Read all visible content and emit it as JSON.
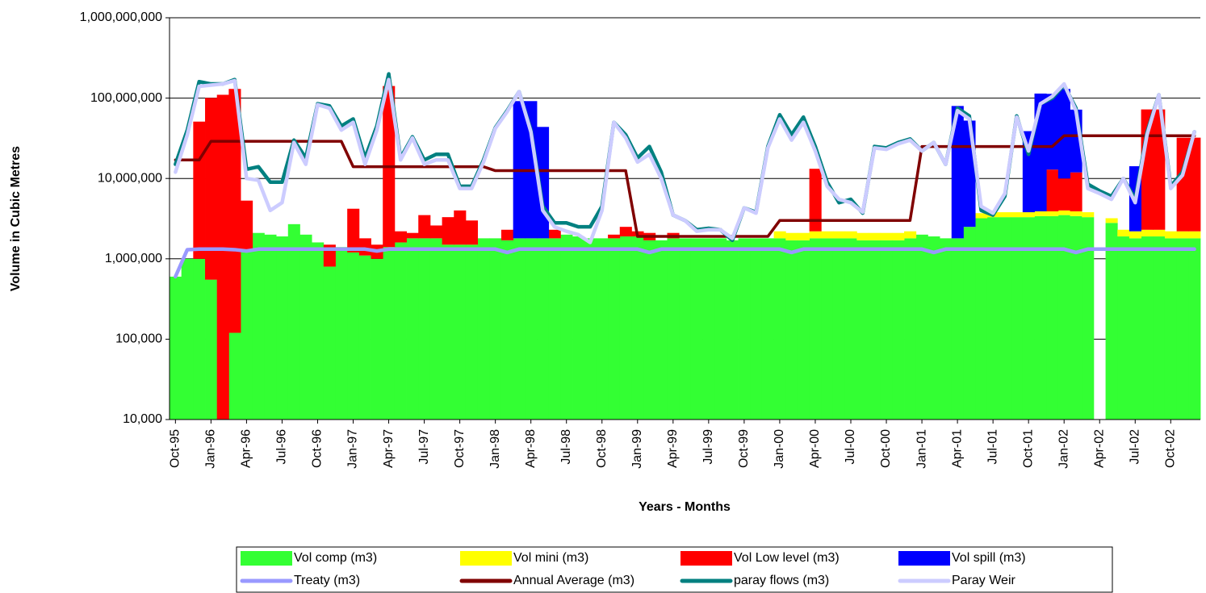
{
  "chart_data": {
    "type": "area",
    "stacked": true,
    "log_scale": true,
    "grid": true,
    "legend": "bottom",
    "y_label": "Volume in Cubic Metres",
    "x_label": "Years - Months",
    "ylim": [
      10000,
      1000000000
    ],
    "yticks": [
      {
        "value": 10000,
        "label": "10,000"
      },
      {
        "value": 100000,
        "label": "100,000"
      },
      {
        "value": 1000000,
        "label": "1,000,000"
      },
      {
        "value": 10000000,
        "label": "10,000,000"
      },
      {
        "value": 100000000,
        "label": "100,000,000"
      },
      {
        "value": 1000000000,
        "label": "1,000,000,000"
      }
    ],
    "categories": [
      "Oct-95",
      null,
      null,
      "Jan-96",
      null,
      null,
      "Apr-96",
      null,
      null,
      "Jul-96",
      null,
      null,
      "Oct-96",
      null,
      null,
      "Jan-97",
      null,
      null,
      "Apr-97",
      null,
      null,
      "Jul-97",
      null,
      null,
      "Oct-97",
      null,
      null,
      "Jan-98",
      null,
      null,
      "Apr-98",
      null,
      null,
      "Jul-98",
      null,
      null,
      "Oct-98",
      null,
      null,
      "Jan-99",
      null,
      null,
      "Apr-99",
      null,
      null,
      "Jul-99",
      null,
      null,
      "Oct-99",
      null,
      null,
      "Jan-00",
      null,
      null,
      "Apr-00",
      null,
      null,
      "Jul-00",
      null,
      null,
      "Oct-00",
      null,
      null,
      "Jan-01",
      null,
      null,
      "Apr-01",
      null,
      null,
      "Jul-01",
      null,
      null,
      "Oct-01",
      null,
      null,
      "Jan-02",
      null,
      null,
      "Apr-02",
      null,
      null,
      "Jul-02",
      null,
      null,
      "Oct-02",
      null,
      null
    ],
    "series": [
      {
        "name": "Vol comp (m3)",
        "type": "area",
        "color": "#33ff33",
        "values": [
          600000,
          1000000,
          1000000,
          550000,
          0,
          120000,
          1300000,
          2100000,
          2000000,
          1900000,
          2700000,
          2000000,
          1600000,
          800000,
          1400000,
          1200000,
          1100000,
          1000000,
          1400000,
          1600000,
          1800000,
          1800000,
          1800000,
          1500000,
          1500000,
          1500000,
          1800000,
          1800000,
          1700000,
          1800000,
          1800000,
          1800000,
          1800000,
          2000000,
          1900000,
          1800000,
          1800000,
          1800000,
          1900000,
          1900000,
          1700000,
          1700000,
          1800000,
          1800000,
          1800000,
          1800000,
          1800000,
          1700000,
          1800000,
          1800000,
          1800000,
          1800000,
          1700000,
          1700000,
          1800000,
          1800000,
          1800000,
          1800000,
          1700000,
          1700000,
          1700000,
          1700000,
          1800000,
          2000000,
          1900000,
          1800000,
          1800000,
          2500000,
          3200000,
          3300000,
          3300000,
          3300000,
          3300000,
          3400000,
          3400000,
          3500000,
          3400000,
          3300000,
          0,
          2800000,
          1900000,
          1800000,
          1900000,
          1900000,
          1800000,
          1800000,
          1800000
        ]
      },
      {
        "name": "Vol mini (m3)",
        "type": "area",
        "color": "#ffff00",
        "values": [
          0,
          0,
          0,
          0,
          0,
          0,
          0,
          0,
          0,
          0,
          0,
          0,
          0,
          0,
          0,
          0,
          0,
          0,
          0,
          0,
          0,
          0,
          0,
          0,
          0,
          0,
          0,
          0,
          0,
          0,
          0,
          0,
          0,
          0,
          0,
          0,
          0,
          0,
          0,
          0,
          0,
          0,
          0,
          0,
          0,
          0,
          0,
          0,
          0,
          0,
          0,
          400000,
          400000,
          400000,
          400000,
          400000,
          400000,
          400000,
          400000,
          400000,
          400000,
          400000,
          400000,
          0,
          0,
          0,
          0,
          0,
          500000,
          500000,
          500000,
          500000,
          500000,
          500000,
          500000,
          500000,
          500000,
          500000,
          0,
          400000,
          400000,
          400000,
          400000,
          400000,
          400000,
          400000,
          400000
        ]
      },
      {
        "name": "Vol Low level (m3)",
        "type": "area",
        "color": "#ff0000",
        "values": [
          0,
          0,
          50000000,
          100000000,
          110000000,
          130000000,
          4000000,
          0,
          0,
          0,
          0,
          0,
          0,
          700000,
          0,
          3000000,
          700000,
          500000,
          140000000,
          600000,
          300000,
          1700000,
          800000,
          1800000,
          2500000,
          1500000,
          0,
          0,
          600000,
          0,
          0,
          0,
          500000,
          0,
          0,
          0,
          0,
          200000,
          600000,
          300000,
          400000,
          0,
          300000,
          0,
          0,
          0,
          0,
          0,
          0,
          0,
          0,
          0,
          0,
          0,
          11000000,
          0,
          0,
          0,
          0,
          0,
          0,
          0,
          0,
          0,
          0,
          0,
          0,
          0,
          0,
          0,
          0,
          0,
          0,
          0,
          9000000,
          6000000,
          8000000,
          0,
          0,
          0,
          0,
          0,
          70000000,
          70000000,
          0,
          30000000,
          30000000
        ]
      },
      {
        "name": "Vol spill (m3)",
        "type": "area",
        "color": "#0000ff",
        "values": [
          0,
          0,
          0,
          0,
          0,
          0,
          0,
          0,
          0,
          0,
          0,
          0,
          0,
          0,
          0,
          0,
          0,
          0,
          0,
          0,
          0,
          0,
          0,
          0,
          0,
          0,
          0,
          0,
          0,
          90000000,
          90000000,
          42000000,
          0,
          0,
          0,
          0,
          0,
          0,
          0,
          0,
          0,
          0,
          0,
          0,
          0,
          0,
          0,
          0,
          0,
          0,
          0,
          0,
          0,
          0,
          0,
          0,
          0,
          0,
          0,
          0,
          0,
          0,
          0,
          0,
          0,
          0,
          78000000,
          50000000,
          0,
          0,
          0,
          0,
          35000000,
          110000000,
          100000000,
          120000000,
          60000000,
          0,
          0,
          0,
          0,
          12000000,
          0,
          0,
          0,
          0,
          0
        ]
      },
      {
        "name": "Treaty (m3)",
        "type": "line",
        "color": "#9999ff",
        "values": [
          600000,
          1300000,
          1320000,
          1320000,
          1320000,
          1300000,
          1250000,
          1320000,
          1320000,
          1320000,
          1320000,
          1320000,
          1320000,
          1320000,
          1320000,
          1320000,
          1320000,
          1250000,
          1320000,
          1320000,
          1320000,
          1320000,
          1320000,
          1320000,
          1320000,
          1320000,
          1320000,
          1320000,
          1200000,
          1320000,
          1320000,
          1320000,
          1320000,
          1320000,
          1320000,
          1320000,
          1320000,
          1320000,
          1320000,
          1320000,
          1200000,
          1320000,
          1320000,
          1320000,
          1320000,
          1320000,
          1320000,
          1320000,
          1320000,
          1320000,
          1320000,
          1320000,
          1200000,
          1320000,
          1320000,
          1320000,
          1320000,
          1320000,
          1320000,
          1320000,
          1320000,
          1320000,
          1320000,
          1320000,
          1200000,
          1320000,
          1320000,
          1320000,
          1320000,
          1320000,
          1320000,
          1320000,
          1320000,
          1320000,
          1320000,
          1320000,
          1200000,
          1320000,
          1320000,
          1320000,
          1320000,
          1320000,
          1320000,
          1320000,
          1320000,
          1320000,
          1320000
        ]
      },
      {
        "name": "Annual Average (m3)",
        "type": "line",
        "color": "#800000",
        "values": [
          17000000,
          17000000,
          17000000,
          29000000,
          29000000,
          29000000,
          29000000,
          29000000,
          29000000,
          29000000,
          29000000,
          29000000,
          29000000,
          29000000,
          29000000,
          14000000,
          14000000,
          14000000,
          14000000,
          14000000,
          14000000,
          14000000,
          14000000,
          14000000,
          14000000,
          14000000,
          14000000,
          12500000,
          12500000,
          12500000,
          12500000,
          12500000,
          12500000,
          12500000,
          12500000,
          12500000,
          12500000,
          12500000,
          12500000,
          1900000,
          1900000,
          1900000,
          1900000,
          1900000,
          1900000,
          1900000,
          1900000,
          1900000,
          1900000,
          1900000,
          1900000,
          3000000,
          3000000,
          3000000,
          3000000,
          3000000,
          3000000,
          3000000,
          3000000,
          3000000,
          3000000,
          3000000,
          3000000,
          25000000,
          25000000,
          25000000,
          25000000,
          25000000,
          25000000,
          25000000,
          25000000,
          25000000,
          25000000,
          25000000,
          25000000,
          34000000,
          34000000,
          34000000,
          34000000,
          34000000,
          34000000,
          34000000,
          34000000,
          34000000,
          34000000,
          34000000,
          34000000
        ]
      },
      {
        "name": "paray flows (m3)",
        "type": "line",
        "color": "#008080",
        "values": [
          15000000,
          40000000,
          160000000,
          150000000,
          150000000,
          170000000,
          13000000,
          14000000,
          9000000,
          9000000,
          30000000,
          18000000,
          85000000,
          80000000,
          45000000,
          55000000,
          18000000,
          45000000,
          200000000,
          18000000,
          33000000,
          17000000,
          20000000,
          20000000,
          8000000,
          8000000,
          17000000,
          43000000,
          70000000,
          120000000,
          40000000,
          4500000,
          2800000,
          2800000,
          2500000,
          2500000,
          4500000,
          50000000,
          35000000,
          18000000,
          25000000,
          12000000,
          3500000,
          3000000,
          2300000,
          2400000,
          2300000,
          1700000,
          4300000,
          3800000,
          25000000,
          62000000,
          35000000,
          58000000,
          25000000,
          9000000,
          5000000,
          5500000,
          3700000,
          25000000,
          24000000,
          28000000,
          31000000,
          22000000,
          28000000,
          15000000,
          75000000,
          60000000,
          4000000,
          3500000,
          6000000,
          60000000,
          20000000,
          85000000,
          100000000,
          145000000,
          75000000,
          8500000,
          7000000,
          6000000,
          10000000,
          5500000,
          38000000,
          110000000,
          8000000,
          12000000,
          38000000
        ]
      },
      {
        "name": "Paray Weir",
        "type": "line",
        "color": "#ccccff",
        "values": [
          12000000,
          35000000,
          140000000,
          145000000,
          150000000,
          165000000,
          10000000,
          9500000,
          4000000,
          5000000,
          28000000,
          15000000,
          83000000,
          75000000,
          40000000,
          50000000,
          15000000,
          40000000,
          170000000,
          17000000,
          32000000,
          15000000,
          17000000,
          17000000,
          7500000,
          7500000,
          16000000,
          42000000,
          68000000,
          120000000,
          38000000,
          4000000,
          2500000,
          2200000,
          2000000,
          1600000,
          4000000,
          50000000,
          32000000,
          16000000,
          20000000,
          10000000,
          3500000,
          3000000,
          2200000,
          2300000,
          2300000,
          1800000,
          4300000,
          3700000,
          24000000,
          55000000,
          30000000,
          50000000,
          22000000,
          8000000,
          5500000,
          5000000,
          3800000,
          24000000,
          23000000,
          27000000,
          30000000,
          22000000,
          28000000,
          15000000,
          70000000,
          55000000,
          4500000,
          3700000,
          6500000,
          58000000,
          22000000,
          85000000,
          105000000,
          150000000,
          70000000,
          7500000,
          6500000,
          5500000,
          10000000,
          5000000,
          35000000,
          110000000,
          7500000,
          11000000,
          38000000
        ]
      }
    ]
  }
}
